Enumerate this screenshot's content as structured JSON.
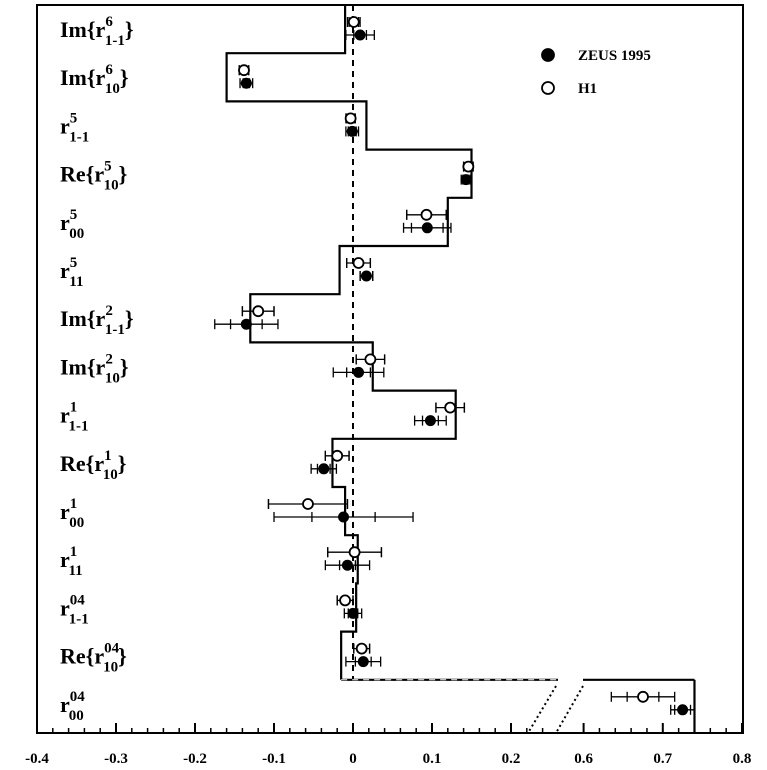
{
  "chart_data": {
    "type": "scatter",
    "title": "",
    "xlabel": "",
    "ylabel": "",
    "x_axis": {
      "segments": [
        {
          "range": [
            -0.4,
            0.25
          ],
          "ticks": [
            -0.4,
            -0.3,
            -0.2,
            -0.1,
            0.0,
            0.1,
            0.2
          ]
        },
        {
          "range": [
            0.55,
            0.8
          ],
          "ticks": [
            0.6,
            0.7,
            0.8
          ]
        }
      ],
      "tick_labels": [
        "-0.4",
        "-0.3",
        "-0.2",
        "-0.1",
        "0",
        "0.1",
        "0.2",
        "0.6",
        "0.7",
        "0.8"
      ],
      "axis_break": true
    },
    "legend": {
      "position": "top-right",
      "entries": [
        {
          "name": "ZEUS 1995",
          "marker": "filled-circle"
        },
        {
          "name": "H1",
          "marker": "open-circle"
        }
      ]
    },
    "rows": [
      {
        "label": {
          "base": "Im{r",
          "sup": "6",
          "sub": "1-1",
          "close": "}"
        },
        "prediction": -0.01,
        "zeus": {
          "x": 0.009,
          "stat": 0.008,
          "tot": 0.018
        },
        "h1": {
          "x": 0.001,
          "stat": 0.006,
          "tot": 0.008
        }
      },
      {
        "label": {
          "base": "Im{r",
          "sup": "6",
          "sub": "10",
          "close": "}"
        },
        "prediction": -0.16,
        "zeus": {
          "x": -0.135,
          "stat": 0.004,
          "tot": 0.008
        },
        "h1": {
          "x": -0.138,
          "stat": 0.006,
          "tot": 0.006
        }
      },
      {
        "label": {
          "base": "r",
          "sup": "5",
          "sub": "1-1",
          "close": ""
        },
        "prediction": 0.017,
        "zeus": {
          "x": -0.001,
          "stat": 0.005,
          "tot": 0.008
        },
        "h1": {
          "x": -0.003,
          "stat": 0.005,
          "tot": 0.006
        }
      },
      {
        "label": {
          "base": "Re{r",
          "sup": "5",
          "sub": "10",
          "close": "}"
        },
        "prediction": 0.15,
        "zeus": {
          "x": 0.143,
          "stat": 0.004,
          "tot": 0.006
        },
        "h1": {
          "x": 0.146,
          "stat": 0.006,
          "tot": 0.006
        }
      },
      {
        "label": {
          "base": "r",
          "sup": "5",
          "sub": "00",
          "close": ""
        },
        "prediction": 0.12,
        "zeus": {
          "x": 0.094,
          "stat": 0.02,
          "tot": 0.03
        },
        "h1": {
          "x": 0.093,
          "stat": 0.025,
          "tot": 0.025
        }
      },
      {
        "label": {
          "base": "r",
          "sup": "5",
          "sub": "11",
          "close": ""
        },
        "prediction": -0.017,
        "zeus": {
          "x": 0.017,
          "stat": 0.008,
          "tot": 0.008
        },
        "h1": {
          "x": 0.007,
          "stat": 0.015,
          "tot": 0.015
        }
      },
      {
        "label": {
          "base": "Im{r",
          "sup": "2",
          "sub": "1-1",
          "close": "}"
        },
        "prediction": -0.13,
        "zeus": {
          "x": -0.135,
          "stat": 0.02,
          "tot": 0.04
        },
        "h1": {
          "x": -0.12,
          "stat": 0.02,
          "tot": 0.02
        }
      },
      {
        "label": {
          "base": "Im{r",
          "sup": "2",
          "sub": "10",
          "close": "}"
        },
        "prediction": 0.025,
        "zeus": {
          "x": 0.007,
          "stat": 0.015,
          "tot": 0.032
        },
        "h1": {
          "x": 0.022,
          "stat": 0.018,
          "tot": 0.018
        }
      },
      {
        "label": {
          "base": "r",
          "sup": "1",
          "sub": "1-1",
          "close": ""
        },
        "prediction": 0.13,
        "zeus": {
          "x": 0.098,
          "stat": 0.01,
          "tot": 0.02
        },
        "h1": {
          "x": 0.123,
          "stat": 0.018,
          "tot": 0.018
        }
      },
      {
        "label": {
          "base": "Re{r",
          "sup": "1",
          "sub": "10",
          "close": "}"
        },
        "prediction": -0.026,
        "zeus": {
          "x": -0.037,
          "stat": 0.008,
          "tot": 0.016
        },
        "h1": {
          "x": -0.02,
          "stat": 0.015,
          "tot": 0.015
        }
      },
      {
        "label": {
          "base": "r",
          "sup": "1",
          "sub": "00",
          "close": ""
        },
        "prediction": -0.01,
        "zeus": {
          "x": -0.012,
          "stat": 0.04,
          "tot": 0.088
        },
        "h1": {
          "x": -0.057,
          "stat": 0.05,
          "tot": 0.05
        }
      },
      {
        "label": {
          "base": "r",
          "sup": "1",
          "sub": "11",
          "close": ""
        },
        "prediction": 0.006,
        "zeus": {
          "x": -0.007,
          "stat": 0.01,
          "tot": 0.028
        },
        "h1": {
          "x": 0.002,
          "stat": 0.034,
          "tot": 0.034
        }
      },
      {
        "label": {
          "base": "r",
          "sup": "04",
          "sub": "1-1",
          "close": ""
        },
        "prediction": 0.004,
        "zeus": {
          "x": 0.0,
          "stat": 0.006,
          "tot": 0.011
        },
        "h1": {
          "x": -0.01,
          "stat": 0.01,
          "tot": 0.01
        }
      },
      {
        "label": {
          "base": "Re{r",
          "sup": "04",
          "sub": "10",
          "close": "}"
        },
        "prediction": -0.015,
        "zeus": {
          "x": 0.013,
          "stat": 0.01,
          "tot": 0.022
        },
        "h1": {
          "x": 0.011,
          "stat": 0.01,
          "tot": 0.01
        }
      },
      {
        "label": {
          "base": "r",
          "sup": "04",
          "sub": "00",
          "close": ""
        },
        "prediction": 0.74,
        "zeus": {
          "x": 0.725,
          "stat": 0.01,
          "tot": 0.015
        },
        "h1": {
          "x": 0.675,
          "stat": 0.02,
          "tot": 0.04
        }
      }
    ],
    "prediction_line": {
      "style": "solid-step",
      "zero_line": "dashed"
    }
  }
}
